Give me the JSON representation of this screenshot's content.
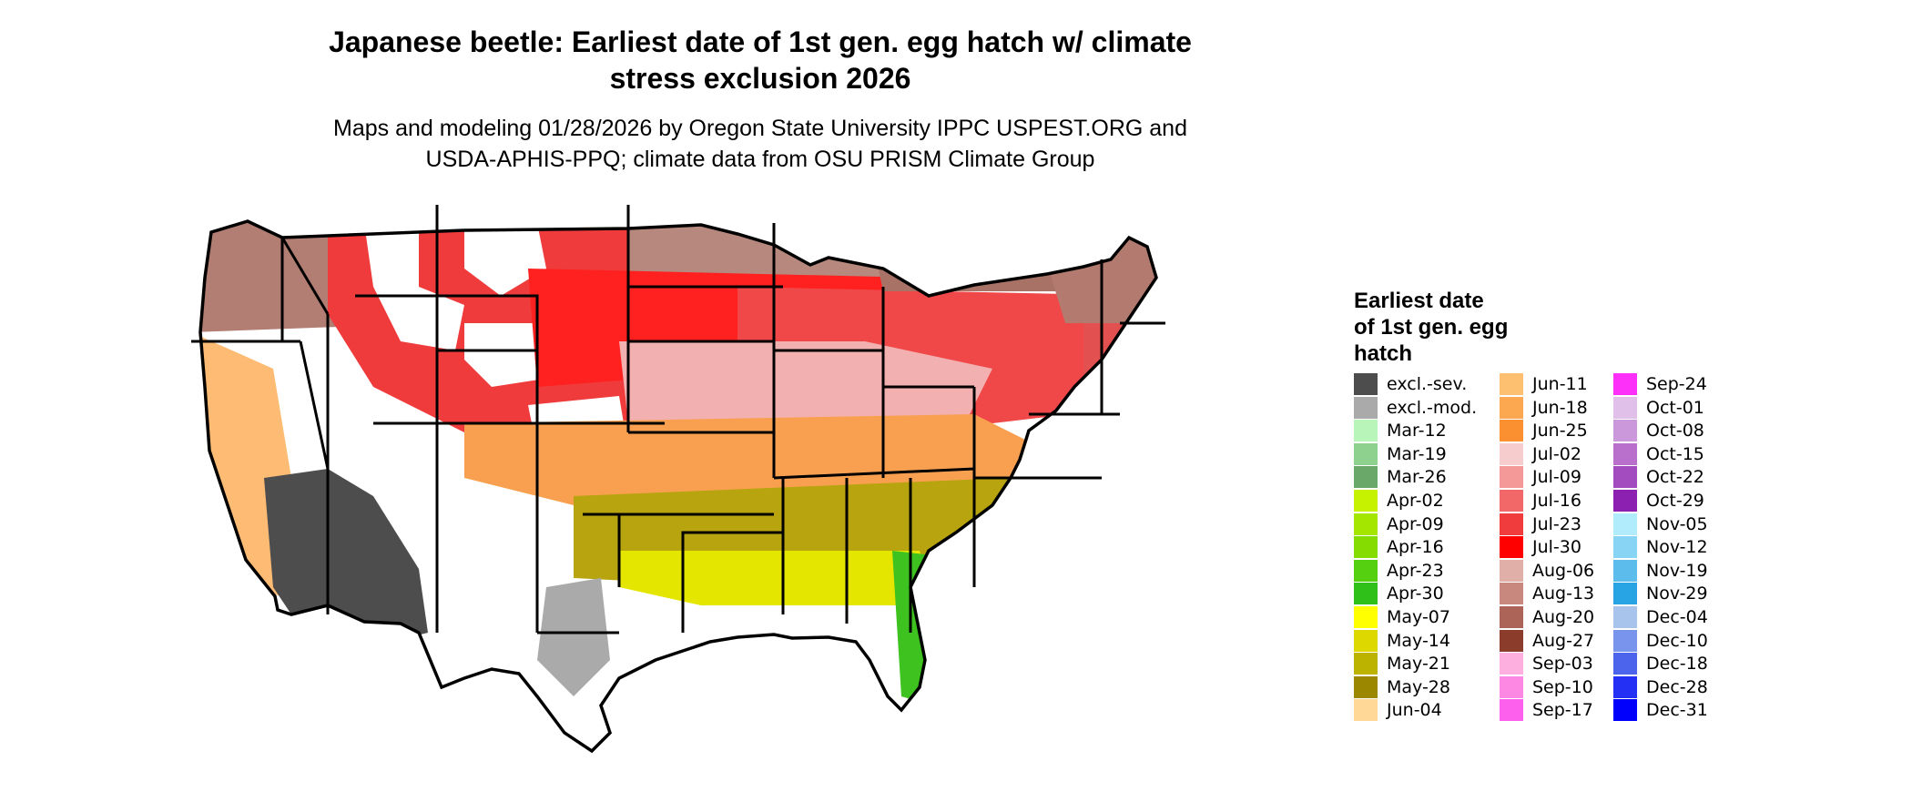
{
  "title": {
    "line1": "Japanese beetle: Earliest date of 1st gen. egg hatch w/ climate",
    "line2": "stress exclusion 2026"
  },
  "subtitle": {
    "line1": "Maps and modeling 01/28/2026 by Oregon State University IPPC USPEST.ORG and",
    "line2": "USDA-APHIS-PPQ; climate data from OSU PRISM Climate Group"
  },
  "map": {
    "regions": [
      {
        "id": "pacific-nw",
        "color": "#b27d72"
      },
      {
        "id": "california-coast",
        "color": "#fdbb73"
      },
      {
        "id": "desert-southwest",
        "color": "#4d4d4d"
      },
      {
        "id": "mountain-west",
        "color": "#ef3b3b"
      },
      {
        "id": "rockies-high",
        "color": "#ffffff"
      },
      {
        "id": "northern-plains",
        "color": "#b6887e"
      },
      {
        "id": "central-plains",
        "color": "#ff2020"
      },
      {
        "id": "midwest",
        "color": "#f04848"
      },
      {
        "id": "mid-south",
        "color": "#f3b0b0"
      },
      {
        "id": "upper-great-lakes",
        "color": "#a87366"
      },
      {
        "id": "great-lakes-north",
        "color": "#ee6ee6"
      },
      {
        "id": "northeast",
        "color": "#e25050"
      },
      {
        "id": "new-england-north",
        "color": "#b37b70"
      },
      {
        "id": "southern-plains",
        "color": "#f9a050"
      },
      {
        "id": "southeast",
        "color": "#b7a40f"
      },
      {
        "id": "gulf-coast",
        "color": "#e5e600"
      },
      {
        "id": "florida",
        "color": "#3ec21f"
      },
      {
        "id": "south-texas",
        "color": "#aaaaaa"
      }
    ]
  },
  "legend": {
    "title_line1": "Earliest date",
    "title_line2": "of 1st gen. egg",
    "title_line3": "hatch",
    "columns": [
      [
        {
          "label": "excl.-sev.",
          "color": "#4d4d4d"
        },
        {
          "label": "excl.-mod.",
          "color": "#aaaaaa"
        },
        {
          "label": "Mar-12",
          "color": "#b8f5b8"
        },
        {
          "label": "Mar-19",
          "color": "#8ed08e"
        },
        {
          "label": "Mar-26",
          "color": "#6aa86a"
        },
        {
          "label": "Apr-02",
          "color": "#c6f200"
        },
        {
          "label": "Apr-09",
          "color": "#a4e600"
        },
        {
          "label": "Apr-16",
          "color": "#84dc00"
        },
        {
          "label": "Apr-23",
          "color": "#55d010"
        },
        {
          "label": "Apr-30",
          "color": "#2fc01a"
        },
        {
          "label": "May-07",
          "color": "#ffff00"
        },
        {
          "label": "May-14",
          "color": "#dcd800"
        },
        {
          "label": "May-21",
          "color": "#bcb200"
        },
        {
          "label": "May-28",
          "color": "#9c8800"
        },
        {
          "label": "Jun-04",
          "color": "#ffd898"
        }
      ],
      [
        {
          "label": "Jun-11",
          "color": "#fdc070"
        },
        {
          "label": "Jun-18",
          "color": "#fca850"
        },
        {
          "label": "Jun-25",
          "color": "#fa9030"
        },
        {
          "label": "Jul-02",
          "color": "#f6cccc"
        },
        {
          "label": "Jul-09",
          "color": "#f49898"
        },
        {
          "label": "Jul-16",
          "color": "#f26868"
        },
        {
          "label": "Jul-23",
          "color": "#f03c3c"
        },
        {
          "label": "Jul-30",
          "color": "#ff0000"
        },
        {
          "label": "Aug-06",
          "color": "#e0b0a8"
        },
        {
          "label": "Aug-13",
          "color": "#c8887e"
        },
        {
          "label": "Aug-20",
          "color": "#ac6458"
        },
        {
          "label": "Aug-27",
          "color": "#8c3c2a"
        },
        {
          "label": "Sep-03",
          "color": "#fdb0e0"
        },
        {
          "label": "Sep-10",
          "color": "#fc88e4"
        },
        {
          "label": "Sep-17",
          "color": "#fc60ec"
        }
      ],
      [
        {
          "label": "Sep-24",
          "color": "#fc30f8"
        },
        {
          "label": "Oct-01",
          "color": "#e0c0e8"
        },
        {
          "label": "Oct-08",
          "color": "#cc98dc"
        },
        {
          "label": "Oct-15",
          "color": "#b870cc"
        },
        {
          "label": "Oct-22",
          "color": "#a24cc0"
        },
        {
          "label": "Oct-29",
          "color": "#8c20b0"
        },
        {
          "label": "Nov-05",
          "color": "#b0ecfc"
        },
        {
          "label": "Nov-12",
          "color": "#88d4f4"
        },
        {
          "label": "Nov-19",
          "color": "#5cbcec"
        },
        {
          "label": "Nov-29",
          "color": "#28a4e4"
        },
        {
          "label": "Dec-04",
          "color": "#a8c4ec"
        },
        {
          "label": "Dec-10",
          "color": "#7894ec"
        },
        {
          "label": "Dec-18",
          "color": "#4c64ec"
        },
        {
          "label": "Dec-28",
          "color": "#2430f4"
        },
        {
          "label": "Dec-31",
          "color": "#0000fc"
        }
      ]
    ]
  }
}
